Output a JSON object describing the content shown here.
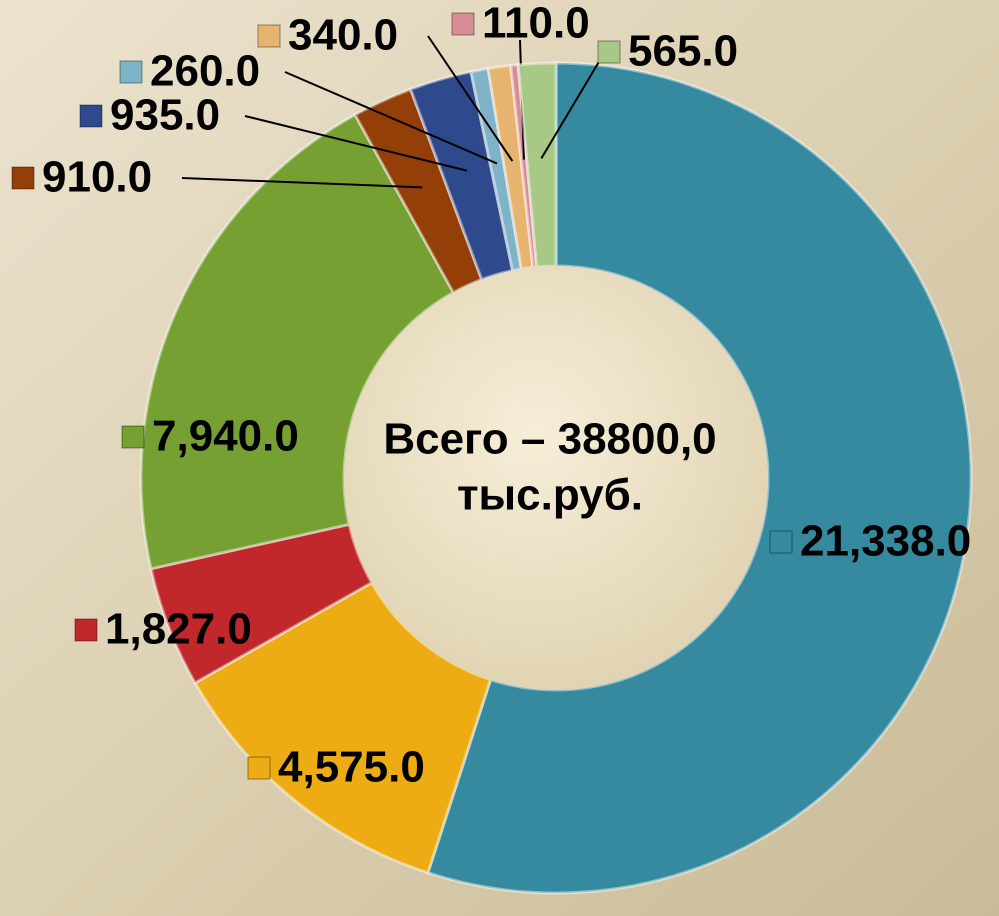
{
  "chart_data": {
    "type": "donut",
    "values": [
      21338,
      4575,
      1827,
      7940,
      910,
      935,
      260,
      340,
      110,
      565
    ],
    "value_labels": [
      "21,338.0",
      "4,575.0",
      "1,827.0",
      "7,940.0",
      "910.0",
      "935.0",
      "260.0",
      "340.0",
      "110.0",
      "565.0"
    ],
    "colors": [
      "#368aa0",
      "#eeac14",
      "#c0282c",
      "#76a032",
      "#943e08",
      "#2e4a8c",
      "#7fb3c8",
      "#e6b46e",
      "#d88c96",
      "#a8c886"
    ],
    "center_text": [
      "Всего – 38800,0",
      "тыс.руб."
    ]
  }
}
